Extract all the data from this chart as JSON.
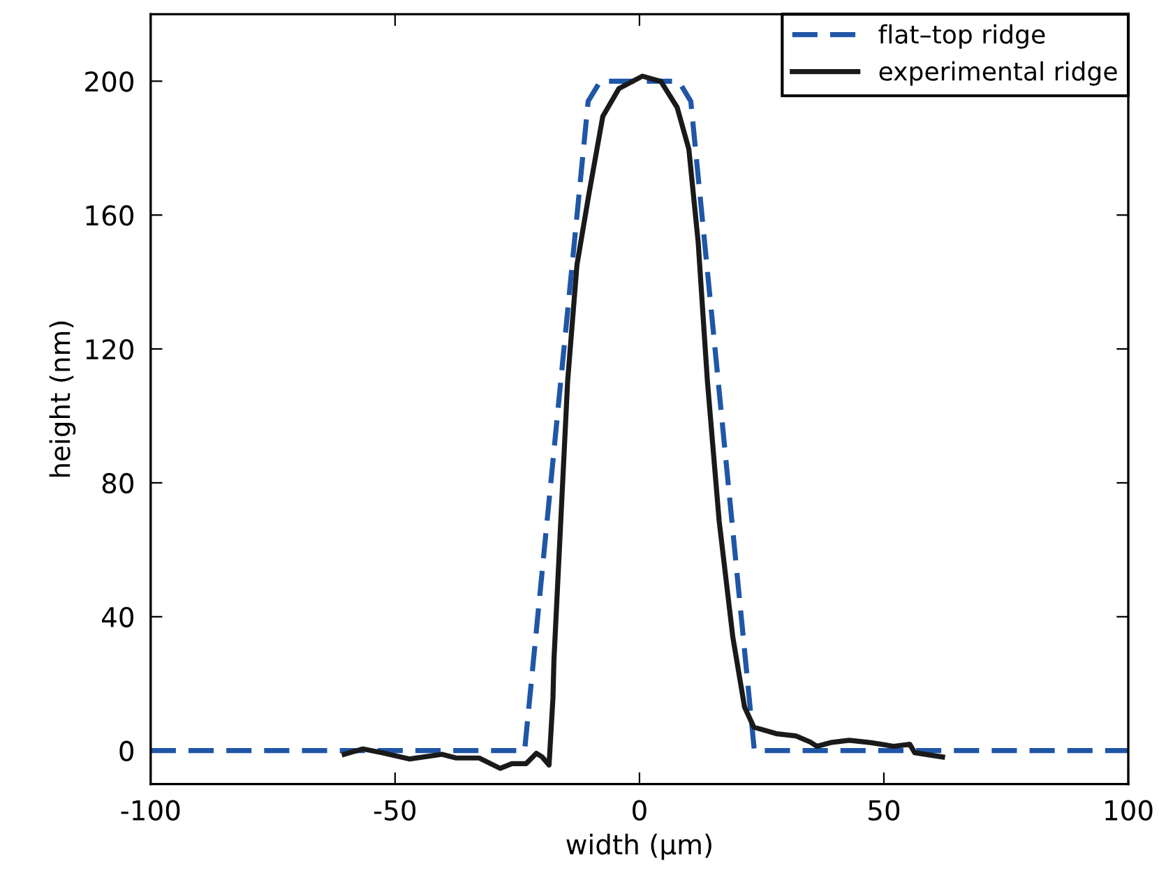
{
  "chart_data": {
    "type": "line",
    "xlabel": "width (µm)",
    "ylabel": "height (nm)",
    "xlim": [
      -100,
      100
    ],
    "ylim": [
      -10,
      220
    ],
    "xticks": [
      -100,
      -50,
      0,
      50,
      100
    ],
    "yticks": [
      0,
      40,
      80,
      120,
      160,
      200
    ],
    "grid": false,
    "legend": "top right",
    "series": [
      {
        "name": "flat–top ridge",
        "color": "#1f56a8",
        "line_style": "dashed",
        "x": [
          -100,
          -23.5,
          -10.5,
          -8,
          8,
          10.5,
          23.5,
          100
        ],
        "values": [
          0,
          0,
          194,
          200,
          200,
          194,
          0,
          0
        ]
      },
      {
        "name": "experimental ridge",
        "color": "#1a1a1a",
        "line_style": "solid",
        "x": [
          -60.4,
          -56.6,
          -52.8,
          -47,
          -40.4,
          -37.5,
          -32.8,
          -28.5,
          -26.1,
          -23.2,
          -21.1,
          -19.9,
          -18.5,
          -17.7,
          -17.5,
          -16.1,
          -14.7,
          -12.8,
          -10.4,
          -7.5,
          -4.2,
          0.6,
          4.4,
          7.7,
          10.1,
          12,
          13.9,
          16.3,
          19.1,
          21.5,
          23.4,
          28.2,
          32,
          34.9,
          36.3,
          39.1,
          42.9,
          47.2,
          52,
          55.3,
          56.3,
          62
        ],
        "values": [
          -1.1,
          0.5,
          -0.6,
          -2.5,
          -1.1,
          -2.2,
          -2.2,
          -5.3,
          -3.9,
          -3.9,
          -0.8,
          -1.9,
          -4.3,
          15.8,
          27,
          68.6,
          110.3,
          145,
          165.8,
          189.5,
          197.8,
          201.5,
          199.9,
          192.2,
          179.7,
          152,
          110.3,
          68.6,
          33.9,
          13,
          7,
          5,
          4.4,
          2.6,
          1.3,
          2.4,
          3.1,
          2.4,
          1.3,
          1.9,
          -0.6,
          -1.9
        ]
      }
    ]
  }
}
